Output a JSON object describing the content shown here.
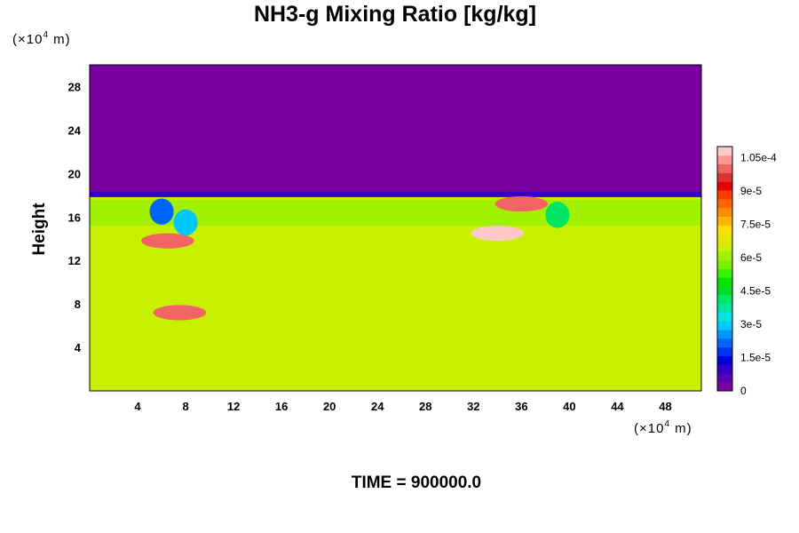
{
  "chart_data": {
    "type": "heatmap",
    "title": "NH3-g Mixing Ratio [kg/kg]",
    "ylabel": "Height",
    "y_unit": {
      "prefix": "(×10",
      "exp": "4",
      "suffix": " m)"
    },
    "x_unit": {
      "prefix": "(×10",
      "exp": "4",
      "suffix": " m)"
    },
    "xlim": [
      0,
      51
    ],
    "ylim": [
      0,
      30
    ],
    "x_ticks": [
      4,
      8,
      12,
      16,
      20,
      24,
      28,
      32,
      36,
      40,
      44,
      48
    ],
    "y_ticks": [
      4,
      8,
      12,
      16,
      20,
      24,
      28
    ],
    "colorbar": {
      "min": 0,
      "max": 0.00011,
      "tick_values": [
        0,
        1.5e-05,
        3e-05,
        4.5e-05,
        6e-05,
        7.5e-05,
        9e-05,
        0.000105
      ],
      "tick_labels": [
        "0",
        "1.5e-5",
        "3e-5",
        "4.5e-5",
        "6e-5",
        "7.5e-5",
        "9e-5",
        "1.05e-4"
      ],
      "colors": [
        "#7800a0",
        "#5a00b4",
        "#3200c8",
        "#0000dc",
        "#0032f0",
        "#0064ff",
        "#0096ff",
        "#00c8ff",
        "#00e6e6",
        "#00e6a0",
        "#00e664",
        "#00dc28",
        "#00e600",
        "#3cf000",
        "#78f000",
        "#a0f000",
        "#c8f000",
        "#e6e600",
        "#ffdc00",
        "#ffb400",
        "#ff8c00",
        "#ff6400",
        "#ff3c00",
        "#e60000",
        "#dc3232",
        "#f06464",
        "#ff9696",
        "#ffc8c8"
      ]
    },
    "field_summary": {
      "upper_region_value": 0,
      "boundary_height": 18,
      "background_value": 6.8e-05,
      "upper_band_value": 6e-05,
      "upper_band_range": [
        15.2,
        17.6
      ],
      "high_patches": [
        {
          "x": 34,
          "y": 14.5,
          "value": 0.00011
        },
        {
          "x": 6.5,
          "y": 13.8,
          "value": 0.0001
        },
        {
          "x": 36,
          "y": 17.2,
          "value": 0.0001
        },
        {
          "x": 7.5,
          "y": 7.2,
          "value": 0.0001
        }
      ],
      "low_patches": [
        {
          "x": 6,
          "y": 16.5,
          "value": 2e-05
        },
        {
          "x": 8,
          "y": 15.5,
          "value": 3e-05
        },
        {
          "x": 39,
          "y": 16.2,
          "value": 4e-05
        }
      ]
    }
  },
  "time_label": "TIME = 900000.0"
}
